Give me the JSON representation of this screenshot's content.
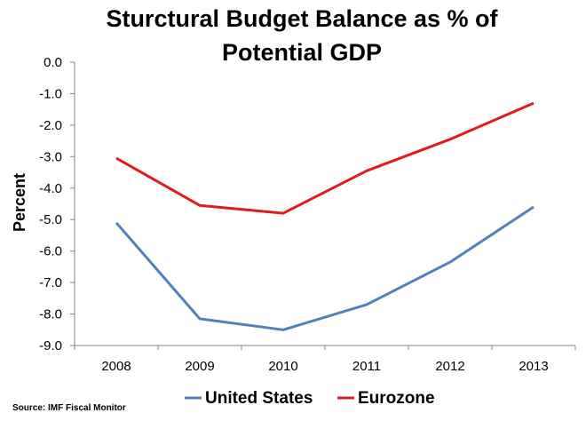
{
  "chart_data": {
    "type": "line",
    "title_lines": [
      "Sturctural Budget Balance as % of",
      "Potential GDP"
    ],
    "xlabel": "",
    "ylabel": "Percent",
    "categories": [
      "2008",
      "2009",
      "2010",
      "2011",
      "2012",
      "2013"
    ],
    "ylim": [
      -9.0,
      0.0
    ],
    "yticks": [
      0.0,
      -1.0,
      -2.0,
      -3.0,
      -4.0,
      -5.0,
      -6.0,
      -7.0,
      -8.0,
      -9.0
    ],
    "ytick_labels": [
      "0.0",
      "-1.0",
      "-2.0",
      "-3.0",
      "-4.0",
      "-5.0",
      "-6.0",
      "-7.0",
      "-8.0",
      "-9.0"
    ],
    "grid": false,
    "legend_position": "bottom",
    "series": [
      {
        "name": "United States",
        "color": "#4f81bd",
        "values": [
          -5.1,
          -8.15,
          -8.5,
          -7.7,
          -6.35,
          -4.6
        ]
      },
      {
        "name": "Eurozone",
        "color": "#e31a1c",
        "values": [
          -3.05,
          -4.55,
          -4.8,
          -3.45,
          -2.45,
          -1.3
        ]
      }
    ],
    "source": "Source: IMF Fiscal Monitor"
  }
}
